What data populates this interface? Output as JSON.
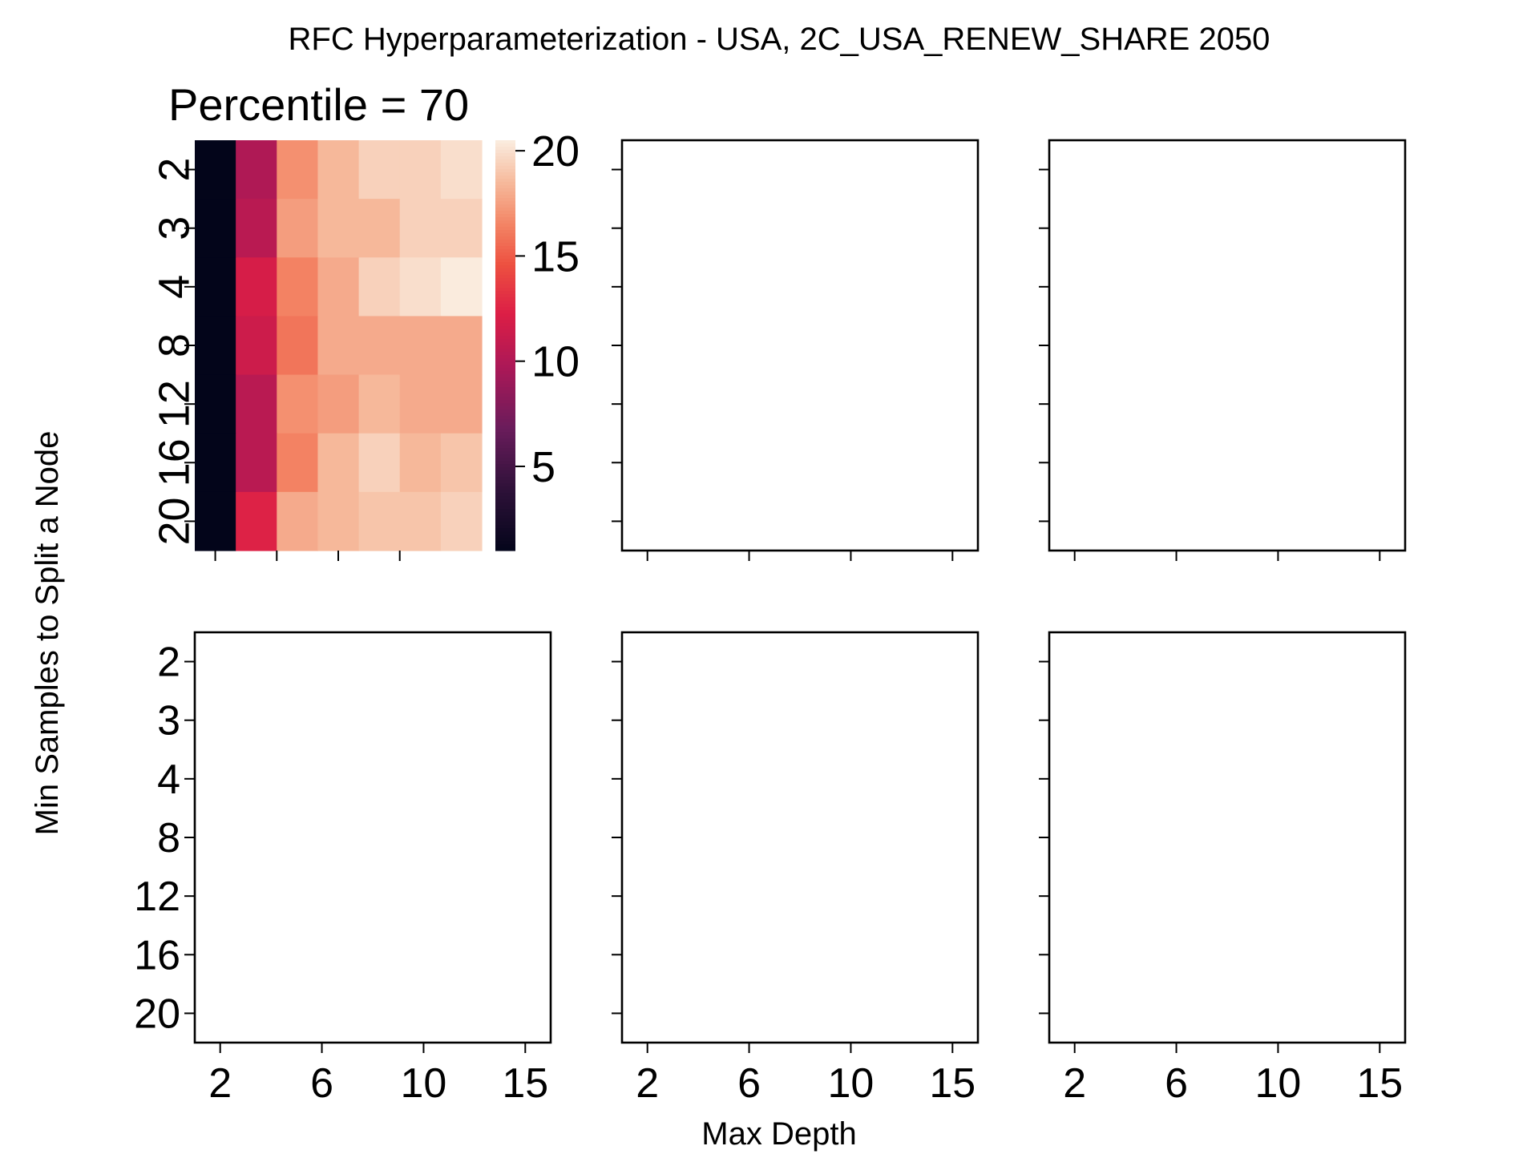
{
  "figure": {
    "suptitle": "RFC Hyperparameterization - USA, 2C_USA_RENEW_SHARE 2050",
    "ylabel": "Min Samples to Split a Node",
    "xlabel": "Max Depth"
  },
  "chart_data": [
    {
      "type": "heatmap",
      "title": "Percentile = 70",
      "x_tick_labels": [
        "",
        "",
        "",
        ""
      ],
      "y_tick_labels": [
        "2",
        "3",
        "4",
        "8",
        "12",
        "16",
        "20"
      ],
      "colorbar": {
        "ticks": [
          5,
          10,
          15,
          20
        ],
        "vmin": 1,
        "vmax": 20.5,
        "colormap": "rocket"
      },
      "values": [
        [
          1.0,
          10.0,
          17.0,
          18.5,
          19.5,
          19.5,
          20.0
        ],
        [
          1.0,
          10.5,
          17.5,
          18.5,
          18.5,
          19.5,
          19.5
        ],
        [
          1.0,
          12.0,
          16.5,
          18.0,
          19.5,
          20.0,
          20.5
        ],
        [
          1.0,
          11.5,
          16.0,
          18.0,
          18.0,
          18.0,
          18.0
        ],
        [
          1.0,
          10.5,
          17.0,
          17.5,
          18.5,
          18.0,
          18.0
        ],
        [
          1.0,
          10.5,
          16.5,
          18.5,
          19.5,
          18.5,
          19.0
        ],
        [
          1.0,
          12.5,
          18.0,
          18.5,
          19.0,
          19.0,
          19.5
        ]
      ]
    },
    {
      "type": "heatmap",
      "title": "",
      "x_tick_labels": [
        "",
        "",
        "",
        ""
      ],
      "y_tick_labels": [
        "",
        "",
        "",
        "",
        "",
        "",
        ""
      ],
      "values": []
    },
    {
      "type": "heatmap",
      "title": "",
      "x_tick_labels": [
        "",
        "",
        "",
        ""
      ],
      "y_tick_labels": [
        "",
        "",
        "",
        "",
        "",
        "",
        ""
      ],
      "values": []
    },
    {
      "type": "heatmap",
      "title": "",
      "x_tick_labels": [
        "2",
        "6",
        "10",
        "15"
      ],
      "y_tick_labels": [
        "2",
        "3",
        "4",
        "8",
        "12",
        "16",
        "20"
      ],
      "values": []
    },
    {
      "type": "heatmap",
      "title": "",
      "x_tick_labels": [
        "2",
        "6",
        "10",
        "15"
      ],
      "y_tick_labels": [
        "",
        "",
        "",
        "",
        "",
        "",
        ""
      ],
      "values": []
    },
    {
      "type": "heatmap",
      "title": "",
      "x_tick_labels": [
        "2",
        "6",
        "10",
        "15"
      ],
      "y_tick_labels": [
        "",
        "",
        "",
        "",
        "",
        "",
        ""
      ],
      "values": []
    }
  ]
}
